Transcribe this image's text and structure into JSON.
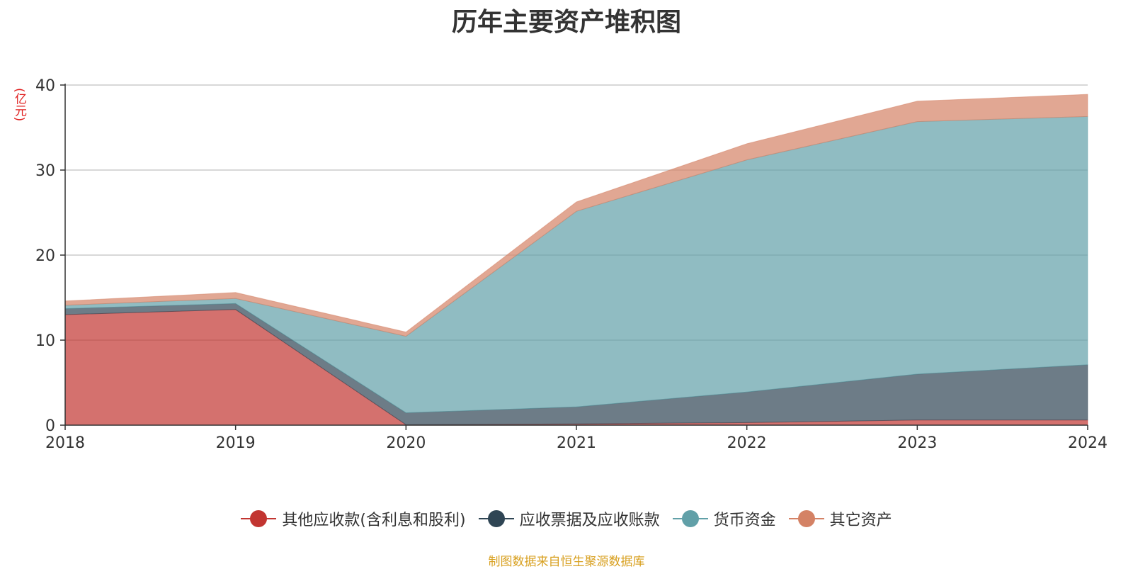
{
  "title": "历年主要资产堆积图",
  "unit_label": "(亿元)",
  "source": "制图数据来自恒生聚源数据库",
  "chart_data": {
    "type": "area",
    "stacked": true,
    "x": [
      "2018",
      "2019",
      "2020",
      "2021",
      "2022",
      "2023",
      "2024"
    ],
    "ylim": [
      0,
      40
    ],
    "yticks": [
      0,
      10,
      20,
      30,
      40
    ],
    "grid": true,
    "legend_position": "bottom",
    "series": [
      {
        "name": "其他应收款(含利息和股利)",
        "color": "#c23531",
        "values": [
          13.0,
          13.6,
          0.05,
          0.15,
          0.3,
          0.6,
          0.6
        ]
      },
      {
        "name": "应收票据及应收账款",
        "color": "#2f4554",
        "values": [
          0.7,
          0.7,
          1.4,
          2.0,
          3.6,
          5.4,
          6.5
        ]
      },
      {
        "name": "货币资金",
        "color": "#61a0a8",
        "values": [
          0.4,
          0.6,
          9.0,
          23.0,
          27.3,
          29.7,
          29.2
        ]
      },
      {
        "name": "其它资产",
        "color": "#d48265",
        "values": [
          0.5,
          0.7,
          0.5,
          1.1,
          1.9,
          2.4,
          2.6
        ]
      }
    ]
  }
}
